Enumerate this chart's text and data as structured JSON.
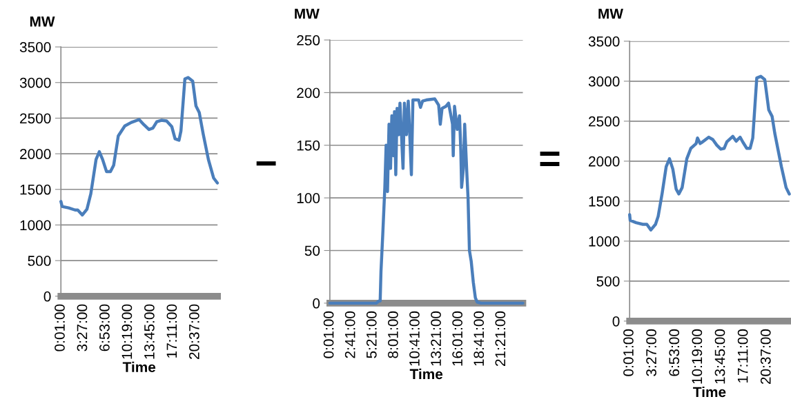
{
  "chart_data": [
    {
      "type": "line",
      "xlabel": "Time",
      "ylabel": "MW",
      "grid": "y",
      "marker": "none",
      "line_style": "solid",
      "xlim": [
        0.016667,
        24
      ],
      "ylim": [
        0,
        3500
      ],
      "yticks": [
        0,
        500,
        1000,
        1500,
        2000,
        2500,
        3000,
        3500
      ],
      "xticks": [
        {
          "value": 0.016667,
          "label": "0:01:00"
        },
        {
          "value": 3.45,
          "label": "3:27:00"
        },
        {
          "value": 6.883333,
          "label": "6:53:00"
        },
        {
          "value": 10.316667,
          "label": "10:19:00"
        },
        {
          "value": 13.75,
          "label": "13:45:00"
        },
        {
          "value": 17.183333,
          "label": "17:11:00"
        },
        {
          "value": 20.616667,
          "label": "20:37:00"
        }
      ],
      "x": [
        0.016667,
        0.2,
        1.2,
        2.2,
        2.6,
        3.3,
        4.0,
        4.6,
        5.4,
        5.9,
        6.4,
        7.0,
        7.6,
        8.1,
        8.8,
        9.8,
        10.8,
        12.0,
        12.7,
        13.5,
        14.1,
        14.7,
        15.4,
        16.2,
        17.0,
        17.5,
        18.1,
        18.4,
        19.0,
        19.5,
        20.2,
        20.7,
        21.2,
        21.8,
        22.6,
        23.4,
        23.98
      ],
      "series": [
        {
          "color": "#4a7ebb",
          "values": [
            1330,
            1260,
            1240,
            1210,
            1210,
            1140,
            1220,
            1440,
            1920,
            2030,
            1920,
            1750,
            1750,
            1840,
            2250,
            2390,
            2440,
            2480,
            2410,
            2340,
            2360,
            2450,
            2470,
            2460,
            2380,
            2210,
            2190,
            2320,
            3050,
            3070,
            3020,
            2670,
            2580,
            2280,
            1920,
            1660,
            1590
          ]
        }
      ]
    },
    {
      "type": "line",
      "xlabel": "Time",
      "ylabel": "MW",
      "grid": "y",
      "marker": "none",
      "line_style": "solid",
      "annotations": [
        "−"
      ],
      "xlim": [
        0.016667,
        24
      ],
      "ylim": [
        0,
        250
      ],
      "yticks": [
        0,
        50,
        100,
        150,
        200,
        250
      ],
      "xticks": [
        {
          "value": 0.016667,
          "label": "0:01:00"
        },
        {
          "value": 2.683333,
          "label": "2:41:00"
        },
        {
          "value": 5.35,
          "label": "5:21:00"
        },
        {
          "value": 8.016667,
          "label": "8:01:00"
        },
        {
          "value": 10.683333,
          "label": "10:41:00"
        },
        {
          "value": 13.35,
          "label": "13:21:00"
        },
        {
          "value": 16.016667,
          "label": "16:01:00"
        },
        {
          "value": 18.683333,
          "label": "18:41:00"
        },
        {
          "value": 21.35,
          "label": "21:21:00"
        }
      ],
      "x": [
        0.016667,
        5.79,
        6.11,
        6.27,
        6.37,
        6.59,
        6.85,
        7.01,
        7.18,
        7.37,
        7.56,
        7.72,
        7.92,
        8.05,
        8.21,
        8.37,
        8.56,
        8.73,
        8.89,
        9.11,
        9.28,
        9.53,
        9.76,
        9.92,
        10.15,
        10.34,
        11.05,
        11.28,
        11.54,
        12.02,
        13.06,
        13.54,
        13.74,
        13.96,
        14.45,
        14.77,
        15.26,
        15.35,
        15.51,
        15.84,
        16.13,
        16.29,
        16.39,
        16.61,
        16.77,
        17.03,
        17.19,
        17.36,
        17.58,
        17.84,
        18.1,
        18.33,
        18.81,
        24
      ],
      "series": [
        {
          "color": "#4a7ebb",
          "values": [
            0,
            0,
            2,
            2,
            30,
            65,
            110,
            150,
            106,
            170,
            128,
            178,
            140,
            182,
            122,
            185,
            160,
            190,
            165,
            128,
            190,
            160,
            192,
            165,
            122,
            193,
            193,
            186,
            192,
            193,
            194,
            188,
            170,
            185,
            187,
            190,
            170,
            140,
            187,
            165,
            178,
            145,
            110,
            128,
            170,
            125,
            100,
            50,
            40,
            20,
            5,
            1,
            0,
            0
          ]
        }
      ]
    },
    {
      "type": "line",
      "xlabel": "Time",
      "ylabel": "MW",
      "grid": "y",
      "marker": "none",
      "line_style": "solid",
      "annotations": [
        "="
      ],
      "xlim": [
        0.016667,
        24
      ],
      "ylim": [
        0,
        3500
      ],
      "yticks": [
        0,
        500,
        1000,
        1500,
        2000,
        2500,
        3000,
        3500
      ],
      "xticks": [
        {
          "value": 0.016667,
          "label": "0:01:00"
        },
        {
          "value": 3.45,
          "label": "3:27:00"
        },
        {
          "value": 6.883333,
          "label": "6:53:00"
        },
        {
          "value": 10.316667,
          "label": "10:19:00"
        },
        {
          "value": 13.75,
          "label": "13:45:00"
        },
        {
          "value": 17.183333,
          "label": "17:11:00"
        },
        {
          "value": 20.616667,
          "label": "20:37:00"
        }
      ],
      "x": [
        0.016667,
        0.1,
        1.0,
        2.0,
        2.6,
        3.2,
        3.9,
        4.3,
        4.9,
        5.5,
        6.0,
        6.5,
        7.0,
        7.4,
        7.9,
        8.6,
        9.2,
        10.0,
        10.2,
        10.6,
        11.1,
        11.9,
        12.5,
        13.1,
        13.7,
        14.2,
        14.6,
        15.5,
        16.0,
        16.6,
        17.0,
        17.6,
        18.1,
        18.5,
        19.1,
        19.7,
        20.3,
        20.9,
        21.4,
        21.8,
        22.8,
        23.5,
        23.98
      ],
      "series": [
        {
          "color": "#4a7ebb",
          "values": [
            1330,
            1260,
            1230,
            1210,
            1210,
            1140,
            1210,
            1310,
            1600,
            1930,
            2030,
            1900,
            1650,
            1590,
            1670,
            2030,
            2160,
            2220,
            2290,
            2220,
            2250,
            2300,
            2270,
            2200,
            2150,
            2160,
            2240,
            2310,
            2250,
            2300,
            2240,
            2160,
            2160,
            2290,
            3040,
            3060,
            3020,
            2640,
            2560,
            2350,
            1930,
            1670,
            1590
          ]
        }
      ]
    }
  ]
}
